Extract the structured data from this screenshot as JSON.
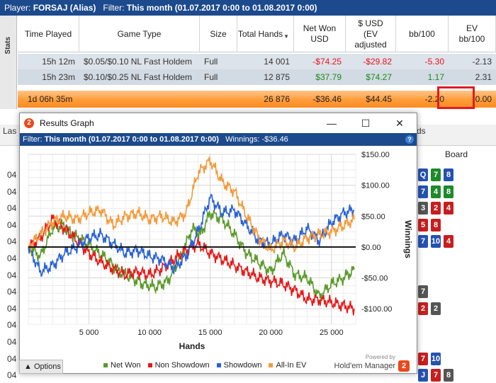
{
  "topbar": {
    "player_label": "Player:",
    "player": "FORSAJ (Alias)",
    "filter_label": "Filter:",
    "filter": "This month (01.07.2017 0:00 to 01.08.2017 0:00)"
  },
  "stats_tab": "Stats",
  "table": {
    "headers": [
      "Time Played",
      "Game Type",
      "Size",
      "Total Hands",
      "Net Won USD",
      "$ USD (EV adjusted",
      "bb/100",
      "EV bb/100"
    ],
    "rows": [
      {
        "time": "15h 12m",
        "game": "$0.05/$0.10 NL Fast Holdem",
        "size": "Full",
        "hands": "14 001",
        "net": "-$74.25",
        "ev": "-$29.82",
        "bb": "-5.30",
        "evbb": "-2.13"
      },
      {
        "time": "15h 23m",
        "game": "$0.10/$0.25 NL Fast Holdem",
        "size": "Full",
        "hands": "12 875",
        "net": "$37.79",
        "ev": "$74.27",
        "bb": "1.17",
        "evbb": "2.31"
      }
    ],
    "total": {
      "time": "1d 06h 35m",
      "hands": "26 876",
      "net": "-$36.46",
      "ev": "$44.45",
      "bb": "-2.20",
      "evbb": "0.00"
    }
  },
  "background": {
    "tab_left": "Las",
    "tab_right": "ds",
    "board_header": "Board",
    "row_labels": [
      "04",
      "04",
      "04",
      "04",
      "04",
      "04",
      "04",
      "04",
      "04",
      "04",
      "04",
      "04",
      "04"
    ]
  },
  "window": {
    "title": "Results Graph",
    "filter_label": "Filter:",
    "filter": "This month (01.07.2017 0:00 to 01.08.2017 0:00)",
    "winnings": "Winnings: -$36.46",
    "options": "Options",
    "powered_by": "Powered by",
    "brand": "Hold'em Manager",
    "brand_logo": "2"
  },
  "chart_data": {
    "type": "line",
    "xlabel": "Hands",
    "ylabel": "Winnings",
    "xlim": [
      0,
      27000
    ],
    "ylim": [
      -125,
      150
    ],
    "xticks": [
      5000,
      10000,
      15000,
      20000,
      25000
    ],
    "xtick_labels": [
      "5 000",
      "10 000",
      "15 000",
      "20 000",
      "25 000"
    ],
    "yticks": [
      150,
      100,
      50,
      0,
      -50,
      -100
    ],
    "ytick_labels": [
      "$150.00",
      "$100.00",
      "$50.00",
      "$0.00",
      "-$50.00",
      "-$100.00"
    ],
    "grid": true,
    "legend_position": "bottom",
    "series": [
      {
        "name": "Net Won",
        "color": "#5a9a2a",
        "x": [
          0,
          1000,
          2000,
          2800,
          3600,
          4500,
          5500,
          6500,
          7500,
          8500,
          9500,
          10500,
          11500,
          12500,
          13500,
          14200,
          15000,
          16000,
          17000,
          18000,
          19000,
          20000,
          21000,
          22000,
          23000,
          24000,
          25000,
          26000,
          26876
        ],
        "values": [
          0,
          -15,
          30,
          35,
          20,
          10,
          -5,
          -20,
          -40,
          -50,
          -60,
          -65,
          -55,
          -20,
          30,
          20,
          55,
          45,
          20,
          -10,
          -25,
          -40,
          -10,
          -45,
          -50,
          -80,
          -60,
          -50,
          -36.46
        ]
      },
      {
        "name": "Non Showdown",
        "color": "#e81818",
        "x": [
          0,
          1000,
          2000,
          3000,
          4000,
          5000,
          6000,
          7000,
          8000,
          9000,
          10000,
          11000,
          12000,
          13000,
          14000,
          15000,
          16000,
          17000,
          18000,
          19000,
          20000,
          21000,
          22000,
          23000,
          24000,
          25000,
          26000,
          26876
        ],
        "values": [
          0,
          15,
          45,
          30,
          10,
          -10,
          -25,
          -35,
          -45,
          -40,
          -45,
          -35,
          -20,
          -5,
          5,
          -10,
          -20,
          -30,
          -40,
          -50,
          -55,
          -60,
          -70,
          -85,
          -85,
          -90,
          -95,
          -100
        ]
      },
      {
        "name": "Showdown",
        "color": "#2a62d6",
        "x": [
          0,
          1000,
          2000,
          3000,
          4000,
          5000,
          6000,
          7000,
          8000,
          9000,
          10000,
          11000,
          12000,
          13000,
          14000,
          15000,
          16000,
          17000,
          18000,
          19000,
          20000,
          21000,
          22000,
          23000,
          24000,
          25000,
          26000,
          26876
        ],
        "values": [
          0,
          -40,
          -30,
          -10,
          0,
          15,
          20,
          5,
          -10,
          -5,
          -15,
          -20,
          -35,
          -15,
          25,
          80,
          55,
          60,
          35,
          10,
          5,
          20,
          10,
          30,
          10,
          40,
          55,
          60
        ]
      },
      {
        "name": "All-In EV",
        "color": "#f39a3a",
        "x": [
          0,
          1000,
          2000,
          3000,
          4000,
          5000,
          6000,
          7000,
          8000,
          9000,
          10000,
          11000,
          12000,
          13000,
          14000,
          15000,
          16000,
          17000,
          18000,
          19000,
          20000,
          21000,
          22000,
          23000,
          24000,
          25000,
          26000,
          26876
        ],
        "values": [
          0,
          20,
          40,
          50,
          45,
          55,
          60,
          35,
          50,
          55,
          45,
          50,
          40,
          55,
          120,
          140,
          105,
          90,
          50,
          15,
          -5,
          10,
          0,
          15,
          20,
          25,
          35,
          44.45
        ]
      }
    ]
  }
}
